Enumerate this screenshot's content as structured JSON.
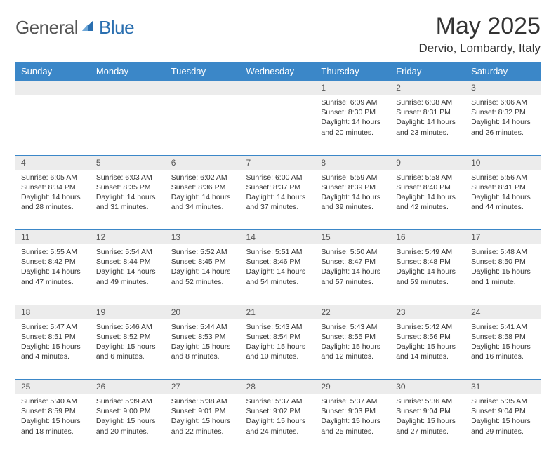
{
  "brand": {
    "part1": "General",
    "part2": "Blue"
  },
  "title": "May 2025",
  "location": "Dervio, Lombardy, Italy",
  "day_headers": [
    "Sunday",
    "Monday",
    "Tuesday",
    "Wednesday",
    "Thursday",
    "Friday",
    "Saturday"
  ],
  "colors": {
    "header_bg": "#3b87c8",
    "header_fg": "#ffffff",
    "daynum_bg": "#ececec",
    "row_border": "#3b87c8",
    "brand_gray": "#555555",
    "brand_blue": "#2a6fb0"
  },
  "weeks": [
    [
      null,
      null,
      null,
      null,
      {
        "n": "1",
        "sr": "Sunrise: 6:09 AM",
        "ss": "Sunset: 8:30 PM",
        "d1": "Daylight: 14 hours",
        "d2": "and 20 minutes."
      },
      {
        "n": "2",
        "sr": "Sunrise: 6:08 AM",
        "ss": "Sunset: 8:31 PM",
        "d1": "Daylight: 14 hours",
        "d2": "and 23 minutes."
      },
      {
        "n": "3",
        "sr": "Sunrise: 6:06 AM",
        "ss": "Sunset: 8:32 PM",
        "d1": "Daylight: 14 hours",
        "d2": "and 26 minutes."
      }
    ],
    [
      {
        "n": "4",
        "sr": "Sunrise: 6:05 AM",
        "ss": "Sunset: 8:34 PM",
        "d1": "Daylight: 14 hours",
        "d2": "and 28 minutes."
      },
      {
        "n": "5",
        "sr": "Sunrise: 6:03 AM",
        "ss": "Sunset: 8:35 PM",
        "d1": "Daylight: 14 hours",
        "d2": "and 31 minutes."
      },
      {
        "n": "6",
        "sr": "Sunrise: 6:02 AM",
        "ss": "Sunset: 8:36 PM",
        "d1": "Daylight: 14 hours",
        "d2": "and 34 minutes."
      },
      {
        "n": "7",
        "sr": "Sunrise: 6:00 AM",
        "ss": "Sunset: 8:37 PM",
        "d1": "Daylight: 14 hours",
        "d2": "and 37 minutes."
      },
      {
        "n": "8",
        "sr": "Sunrise: 5:59 AM",
        "ss": "Sunset: 8:39 PM",
        "d1": "Daylight: 14 hours",
        "d2": "and 39 minutes."
      },
      {
        "n": "9",
        "sr": "Sunrise: 5:58 AM",
        "ss": "Sunset: 8:40 PM",
        "d1": "Daylight: 14 hours",
        "d2": "and 42 minutes."
      },
      {
        "n": "10",
        "sr": "Sunrise: 5:56 AM",
        "ss": "Sunset: 8:41 PM",
        "d1": "Daylight: 14 hours",
        "d2": "and 44 minutes."
      }
    ],
    [
      {
        "n": "11",
        "sr": "Sunrise: 5:55 AM",
        "ss": "Sunset: 8:42 PM",
        "d1": "Daylight: 14 hours",
        "d2": "and 47 minutes."
      },
      {
        "n": "12",
        "sr": "Sunrise: 5:54 AM",
        "ss": "Sunset: 8:44 PM",
        "d1": "Daylight: 14 hours",
        "d2": "and 49 minutes."
      },
      {
        "n": "13",
        "sr": "Sunrise: 5:52 AM",
        "ss": "Sunset: 8:45 PM",
        "d1": "Daylight: 14 hours",
        "d2": "and 52 minutes."
      },
      {
        "n": "14",
        "sr": "Sunrise: 5:51 AM",
        "ss": "Sunset: 8:46 PM",
        "d1": "Daylight: 14 hours",
        "d2": "and 54 minutes."
      },
      {
        "n": "15",
        "sr": "Sunrise: 5:50 AM",
        "ss": "Sunset: 8:47 PM",
        "d1": "Daylight: 14 hours",
        "d2": "and 57 minutes."
      },
      {
        "n": "16",
        "sr": "Sunrise: 5:49 AM",
        "ss": "Sunset: 8:48 PM",
        "d1": "Daylight: 14 hours",
        "d2": "and 59 minutes."
      },
      {
        "n": "17",
        "sr": "Sunrise: 5:48 AM",
        "ss": "Sunset: 8:50 PM",
        "d1": "Daylight: 15 hours",
        "d2": "and 1 minute."
      }
    ],
    [
      {
        "n": "18",
        "sr": "Sunrise: 5:47 AM",
        "ss": "Sunset: 8:51 PM",
        "d1": "Daylight: 15 hours",
        "d2": "and 4 minutes."
      },
      {
        "n": "19",
        "sr": "Sunrise: 5:46 AM",
        "ss": "Sunset: 8:52 PM",
        "d1": "Daylight: 15 hours",
        "d2": "and 6 minutes."
      },
      {
        "n": "20",
        "sr": "Sunrise: 5:44 AM",
        "ss": "Sunset: 8:53 PM",
        "d1": "Daylight: 15 hours",
        "d2": "and 8 minutes."
      },
      {
        "n": "21",
        "sr": "Sunrise: 5:43 AM",
        "ss": "Sunset: 8:54 PM",
        "d1": "Daylight: 15 hours",
        "d2": "and 10 minutes."
      },
      {
        "n": "22",
        "sr": "Sunrise: 5:43 AM",
        "ss": "Sunset: 8:55 PM",
        "d1": "Daylight: 15 hours",
        "d2": "and 12 minutes."
      },
      {
        "n": "23",
        "sr": "Sunrise: 5:42 AM",
        "ss": "Sunset: 8:56 PM",
        "d1": "Daylight: 15 hours",
        "d2": "and 14 minutes."
      },
      {
        "n": "24",
        "sr": "Sunrise: 5:41 AM",
        "ss": "Sunset: 8:58 PM",
        "d1": "Daylight: 15 hours",
        "d2": "and 16 minutes."
      }
    ],
    [
      {
        "n": "25",
        "sr": "Sunrise: 5:40 AM",
        "ss": "Sunset: 8:59 PM",
        "d1": "Daylight: 15 hours",
        "d2": "and 18 minutes."
      },
      {
        "n": "26",
        "sr": "Sunrise: 5:39 AM",
        "ss": "Sunset: 9:00 PM",
        "d1": "Daylight: 15 hours",
        "d2": "and 20 minutes."
      },
      {
        "n": "27",
        "sr": "Sunrise: 5:38 AM",
        "ss": "Sunset: 9:01 PM",
        "d1": "Daylight: 15 hours",
        "d2": "and 22 minutes."
      },
      {
        "n": "28",
        "sr": "Sunrise: 5:37 AM",
        "ss": "Sunset: 9:02 PM",
        "d1": "Daylight: 15 hours",
        "d2": "and 24 minutes."
      },
      {
        "n": "29",
        "sr": "Sunrise: 5:37 AM",
        "ss": "Sunset: 9:03 PM",
        "d1": "Daylight: 15 hours",
        "d2": "and 25 minutes."
      },
      {
        "n": "30",
        "sr": "Sunrise: 5:36 AM",
        "ss": "Sunset: 9:04 PM",
        "d1": "Daylight: 15 hours",
        "d2": "and 27 minutes."
      },
      {
        "n": "31",
        "sr": "Sunrise: 5:35 AM",
        "ss": "Sunset: 9:04 PM",
        "d1": "Daylight: 15 hours",
        "d2": "and 29 minutes."
      }
    ]
  ]
}
